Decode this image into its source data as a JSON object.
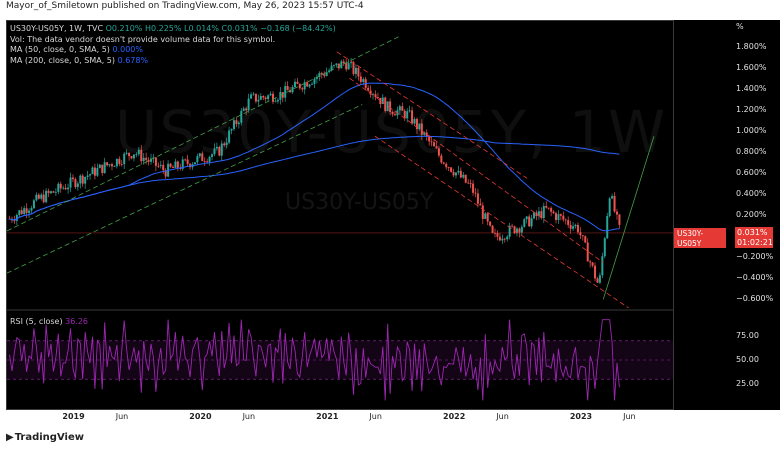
{
  "header": {
    "publisher": "Mayor_of_Smiletown published on TradingView.com, May 26, 2023 15:57 UTC-4"
  },
  "legend": {
    "symbol_line_prefix": "US30Y-US05Y, 1W, TVC",
    "ohlc": "O0.210%  H0.225%  L0.014%  C0.031%  −0.168 (−84.42%)",
    "vol_line": "Vol: The data vendor doesn't provide volume data for this symbol.",
    "ma50_label": "MA (50, close, 0, SMA, 5)",
    "ma50_value": "0.000%",
    "ma200_label": "MA (200, close, 0, SMA, 5)",
    "ma200_value": "0.678%"
  },
  "watermark": {
    "big": "US30Y-US05Y, 1W",
    "small": "US30Y-US05Y"
  },
  "rsi": {
    "label": "RSI (5, close)",
    "value": "36.26",
    "color": "#9c27b0"
  },
  "price_tag": {
    "symbol": "US30Y-US05Y",
    "value": "0.031%",
    "timer": "01:02:21",
    "color": "#e53935"
  },
  "axis": {
    "unit": "%",
    "price_ticks": [
      "1.800%",
      "1.600%",
      "1.400%",
      "1.200%",
      "1.000%",
      "0.800%",
      "0.600%",
      "0.400%",
      "0.200%",
      "−0.200%",
      "−0.400%",
      "−0.600%"
    ],
    "rsi_ticks": [
      "75.00",
      "50.00",
      "25.00"
    ],
    "time_ticks": [
      {
        "label": "2019",
        "bold": true
      },
      {
        "label": "Jun",
        "bold": false
      },
      {
        "label": "2020",
        "bold": true
      },
      {
        "label": "Jun",
        "bold": false
      },
      {
        "label": "2021",
        "bold": true
      },
      {
        "label": "Jun",
        "bold": false
      },
      {
        "label": "2022",
        "bold": true
      },
      {
        "label": "Jun",
        "bold": false
      },
      {
        "label": "2023",
        "bold": true
      },
      {
        "label": "Jun",
        "bold": false
      }
    ]
  },
  "footer": {
    "brand": "TradingView"
  },
  "colors": {
    "up": "#26a69a",
    "down": "#ef5350",
    "ma": "#2962ff",
    "background": "#000000"
  },
  "chart_data": {
    "type": "line",
    "x": [
      "2018-07",
      "2018-10",
      "2019-01",
      "2019-04",
      "2019-07",
      "2019-10",
      "2020-01",
      "2020-03",
      "2020-06",
      "2020-09",
      "2020-12",
      "2021-03",
      "2021-05",
      "2021-07",
      "2021-09",
      "2021-12",
      "2022-03",
      "2022-05",
      "2022-08",
      "2022-10",
      "2023-01",
      "2023-03",
      "2023-04",
      "2023-05"
    ],
    "series": [
      {
        "values": [
          0.15,
          0.35,
          0.5,
          0.65,
          0.8,
          0.62,
          0.73,
          0.8,
          1.3,
          1.35,
          1.5,
          1.65,
          1.45,
          1.22,
          1.15,
          0.75,
          0.45,
          -0.02,
          0.12,
          0.25,
          0.08,
          -0.48,
          0.42,
          0.031
        ]
      }
    ],
    "ylim": [
      -0.7,
      1.9
    ],
    "rsi_ylim": [
      0,
      100
    ]
  }
}
